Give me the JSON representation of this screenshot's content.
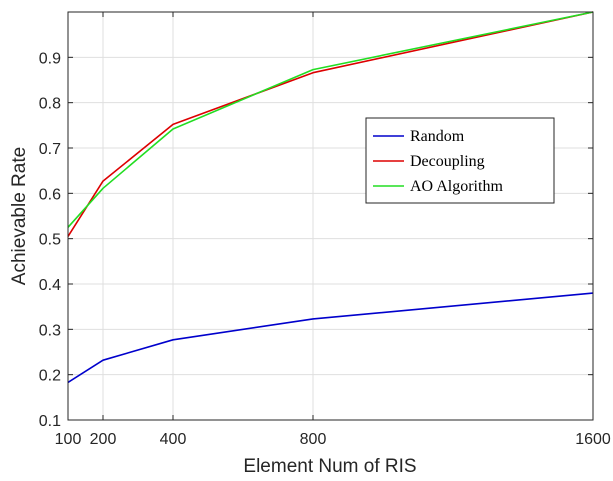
{
  "chart_data": {
    "type": "line",
    "title": "",
    "xlabel": "Element Num of RIS",
    "ylabel": "Achievable Rate",
    "x": [
      100,
      200,
      400,
      800,
      1600
    ],
    "xlim": [
      100,
      1600
    ],
    "ylim": [
      0.1,
      1.0
    ],
    "xticks": [
      100,
      200,
      400,
      800,
      1600
    ],
    "yticks": [
      0.1,
      0.2,
      0.3,
      0.4,
      0.5,
      0.6,
      0.7,
      0.8,
      0.9
    ],
    "grid": true,
    "legend_position": "center-right",
    "series": [
      {
        "name": "Random",
        "color": "#0000cc",
        "values": [
          0.183,
          0.232,
          0.277,
          0.323,
          0.38
        ]
      },
      {
        "name": "Decoupling",
        "color": "#dd0000",
        "values": [
          0.505,
          0.627,
          0.752,
          0.866,
          1.0
        ]
      },
      {
        "name": "AO Algorithm",
        "color": "#22dd22",
        "values": [
          0.525,
          0.611,
          0.742,
          0.873,
          1.0
        ]
      }
    ]
  }
}
